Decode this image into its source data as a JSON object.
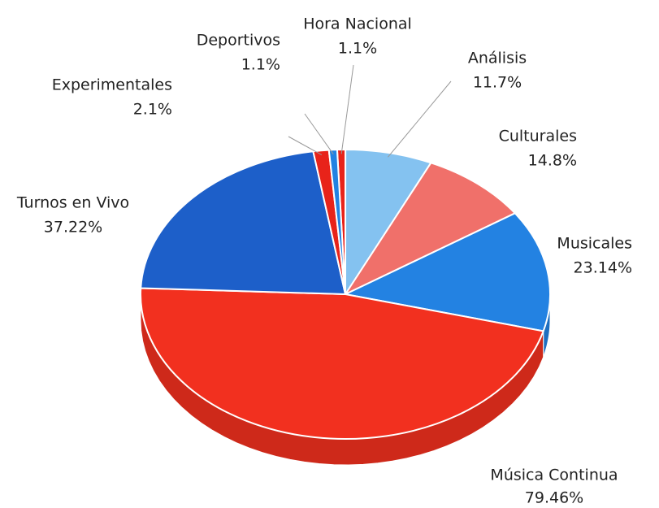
{
  "chart_data": {
    "type": "pie3d",
    "categories": [
      "Hora Nacional",
      "Análisis",
      "Culturales",
      "Musicales",
      "Música Continua",
      "Turnos en Vivo",
      "Experimentales",
      "Deportivos"
    ],
    "values": [
      1.1,
      11.7,
      14.8,
      23.14,
      79.46,
      37.22,
      2.1,
      1.1
    ],
    "value_labels": [
      "1.1%",
      "11.7%",
      "14.8%",
      "23.14%",
      "79.46%",
      "37.22%",
      "2.1%",
      "1.1%"
    ],
    "colors": [
      "#e8231a",
      "#84c2f0",
      "#f0706a",
      "#2382e2",
      "#f2301f",
      "#1d5fc9",
      "#e8231a",
      "#2382e2"
    ]
  }
}
